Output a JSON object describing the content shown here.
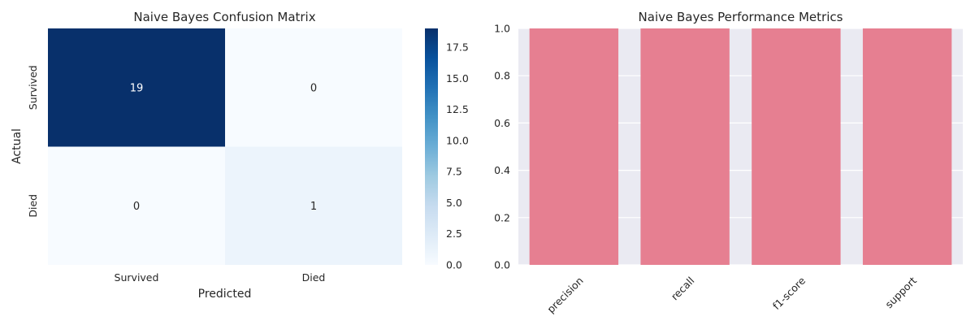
{
  "chart_data": [
    {
      "type": "heatmap",
      "title": "Naive Bayes Confusion Matrix",
      "xlabel": "Predicted",
      "ylabel": "Actual",
      "x_categories": [
        "Survived",
        "Died"
      ],
      "y_categories": [
        "Survived",
        "Died"
      ],
      "values": [
        [
          19,
          0
        ],
        [
          0,
          1
        ]
      ],
      "colormap": "Blues",
      "colorbar": {
        "range": [
          0,
          19
        ],
        "ticks": [
          0.0,
          2.5,
          5.0,
          7.5,
          10.0,
          12.5,
          15.0,
          17.5
        ],
        "tick_labels": [
          "0.0",
          "2.5",
          "5.0",
          "7.5",
          "10.0",
          "12.5",
          "15.0",
          "17.5"
        ]
      },
      "colors": {
        "low": "#f7fbff",
        "high": "#08306b"
      }
    },
    {
      "type": "bar",
      "title": "Naive Bayes Performance Metrics",
      "xlabel": "",
      "ylabel": "",
      "categories": [
        "precision",
        "recall",
        "f1-score",
        "support"
      ],
      "values": [
        1.0,
        1.0,
        1.0,
        1.0
      ],
      "ylim": [
        0,
        1.0
      ],
      "yticks": [
        0.0,
        0.2,
        0.4,
        0.6,
        0.8,
        1.0
      ],
      "ytick_labels": [
        "0.0",
        "0.2",
        "0.4",
        "0.6",
        "0.8",
        "1.0"
      ],
      "grid": true,
      "colors": {
        "bar": "#e67f91",
        "background": "#eaeaf2",
        "grid": "#ffffff"
      }
    }
  ]
}
